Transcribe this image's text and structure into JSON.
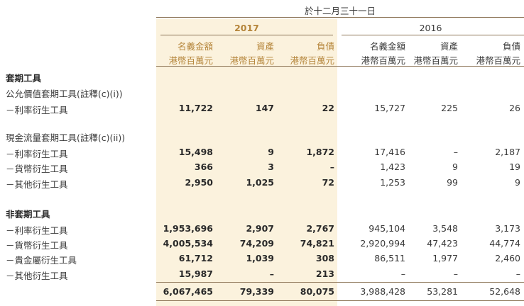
{
  "caption": "於十二月三十一日",
  "years": {
    "y2017": "2017",
    "y2016": "2016"
  },
  "columns": [
    {
      "h1": "名義金額",
      "h2": "港幣百萬元"
    },
    {
      "h1": "資產",
      "h2": "港幣百萬元"
    },
    {
      "h1": "負債",
      "h2": "港幣百萬元"
    },
    {
      "h1": "名義金額",
      "h2": "港幣百萬元"
    },
    {
      "h1": "資產",
      "h2": "港幣百萬元"
    },
    {
      "h1": "負債",
      "h2": "港幣百萬元"
    }
  ],
  "rows": [
    {
      "label": "套期工具",
      "section": true,
      "values": [
        "",
        "",
        "",
        "",
        "",
        ""
      ]
    },
    {
      "label": "公允價值套期工具(註釋(c)(i))",
      "section": false,
      "values": [
        "",
        "",
        "",
        "",
        "",
        ""
      ]
    },
    {
      "label": "－利率衍生工具",
      "section": false,
      "values": [
        "11,722",
        "147",
        "22",
        "15,727",
        "225",
        "26"
      ]
    },
    {
      "label": "現金流量套期工具(註釋(c)(ii))",
      "section": false,
      "values": [
        "",
        "",
        "",
        "",
        "",
        ""
      ]
    },
    {
      "label": "－利率衍生工具",
      "section": false,
      "values": [
        "15,498",
        "9",
        "1,872",
        "17,416",
        "–",
        "2,187"
      ]
    },
    {
      "label": "－貨幣衍生工具",
      "section": false,
      "values": [
        "366",
        "3",
        "–",
        "1,423",
        "9",
        "19"
      ]
    },
    {
      "label": "－其他衍生工具",
      "section": false,
      "values": [
        "2,950",
        "1,025",
        "72",
        "1,253",
        "99",
        "9"
      ]
    },
    {
      "label": "非套期工具",
      "section": true,
      "values": [
        "",
        "",
        "",
        "",
        "",
        ""
      ]
    },
    {
      "label": "－利率衍生工具",
      "section": false,
      "values": [
        "1,953,696",
        "2,907",
        "2,767",
        "945,104",
        "3,548",
        "3,173"
      ]
    },
    {
      "label": "－貨幣衍生工具",
      "section": false,
      "values": [
        "4,005,534",
        "74,209",
        "74,821",
        "2,920,994",
        "47,423",
        "44,774"
      ]
    },
    {
      "label": "－貴金屬衍生工具",
      "section": false,
      "values": [
        "61,712",
        "1,039",
        "308",
        "86,511",
        "1,977",
        "2,460"
      ]
    },
    {
      "label": "－其他衍生工具",
      "section": false,
      "values": [
        "15,987",
        "–",
        "213",
        "–",
        "–",
        "–"
      ]
    },
    {
      "label": "",
      "section": false,
      "values": [
        "6,067,465",
        "79,339",
        "80,075",
        "3,988,428",
        "53,281",
        "52,648"
      ]
    }
  ],
  "colors": {
    "accent": "#b5853a",
    "shade": "#fbf2dd",
    "rule": "#8b7355"
  }
}
